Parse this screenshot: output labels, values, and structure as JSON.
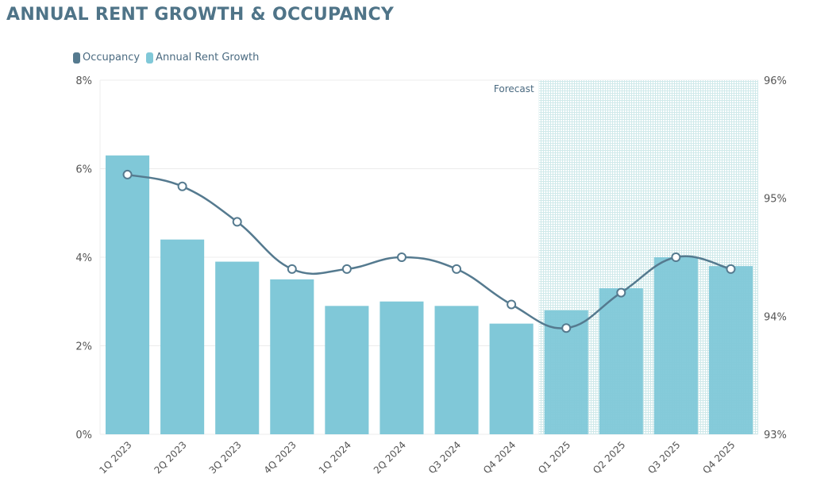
{
  "title": "ANNUAL RENT GROWTH & OCCUPANCY",
  "chart_data": {
    "type": "bar+line",
    "categories": [
      "1Q 2023",
      "2Q 2023",
      "3Q 2023",
      "4Q 2023",
      "1Q 2024",
      "2Q 2024",
      "Q3 2024",
      "Q4 2024",
      "Q1 2025",
      "Q2 2025",
      "Q3 2025",
      "Q4 2025"
    ],
    "series": [
      {
        "name": "Occupancy",
        "type": "line",
        "axis": "right",
        "color": "#557a8f",
        "values": [
          95.2,
          95.1,
          94.8,
          94.4,
          94.4,
          94.5,
          94.4,
          94.1,
          93.9,
          94.2,
          94.5,
          94.4
        ]
      },
      {
        "name": "Annual Rent Growth",
        "type": "bar",
        "axis": "left",
        "color": "#80c8d8",
        "values": [
          6.3,
          4.4,
          3.9,
          3.5,
          2.9,
          3.0,
          2.9,
          2.5,
          2.8,
          3.3,
          4.0,
          3.8
        ]
      }
    ],
    "y_left": {
      "range": [
        0,
        8
      ],
      "ticks": [
        "0%",
        "2%",
        "4%",
        "6%",
        "8%"
      ],
      "tick_values": [
        0,
        2,
        4,
        6,
        8
      ]
    },
    "y_right": {
      "range": [
        93,
        96
      ],
      "ticks": [
        "93%",
        "94%",
        "95%",
        "96%"
      ],
      "tick_values": [
        93,
        94,
        95,
        96
      ]
    },
    "forecast": {
      "label": "Forecast",
      "start_category": "Q1 2025",
      "end_category": "Q4 2025"
    },
    "legend_placement": "top-left",
    "grid": true
  }
}
